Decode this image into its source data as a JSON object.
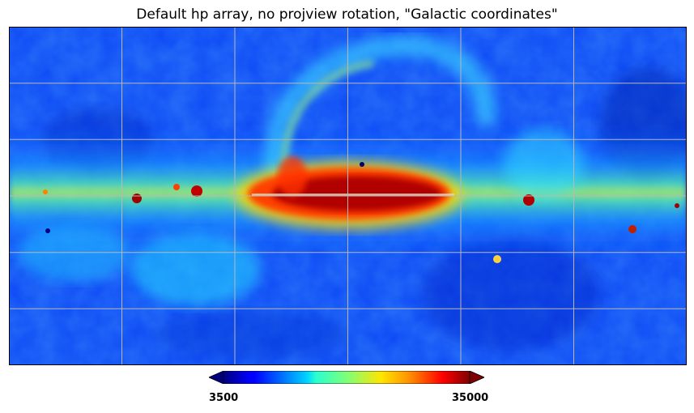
{
  "chart_data": {
    "type": "heatmap",
    "title": "Default hp array, no projview rotation, \"Galactic coordinates\"",
    "projection": "cartesian (full-sky equirectangular)",
    "colormap": "jet",
    "colorbar": {
      "min_label": "3500",
      "max_label": "35000",
      "min": 3500,
      "max": 35000,
      "extend": "both",
      "position": "bottom"
    },
    "graticule": true,
    "xlabel": "",
    "ylabel": "",
    "description": ""
  },
  "colors": {
    "background_low": "#0a40ff",
    "plane_high": "#8b0000",
    "grid": "#b0b0b0"
  }
}
